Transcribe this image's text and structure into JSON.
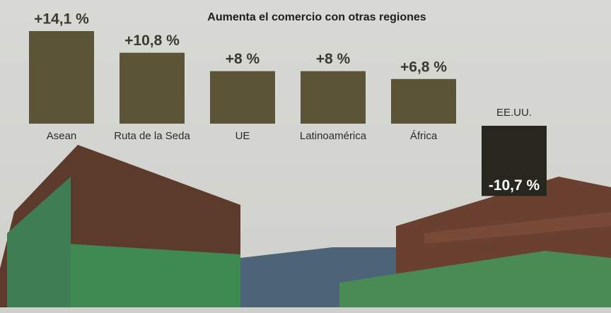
{
  "chart_data": {
    "type": "bar",
    "title": "Aumenta el comercio con otras regiones",
    "categories": [
      "Asean",
      "Ruta de la Seda",
      "UE",
      "Latinoamérica",
      "África",
      "EE.UU."
    ],
    "values": [
      14.1,
      10.8,
      8,
      8,
      6.8,
      -10.7
    ],
    "value_labels": [
      "+14,1 %",
      "+10,8 %",
      "+8 %",
      "+8 %",
      "+6,8 %",
      "-10,7 %"
    ],
    "color": "#5b5436",
    "negative_color": "#27271f"
  }
}
